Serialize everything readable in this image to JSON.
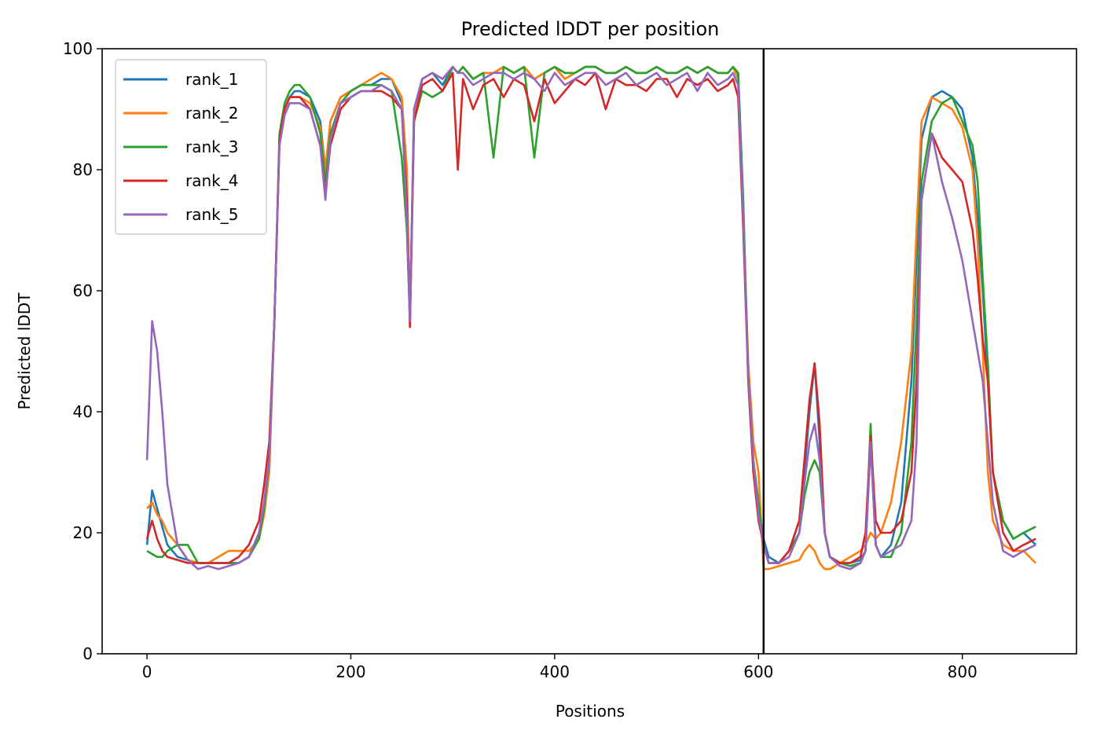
{
  "chart_data": {
    "type": "line",
    "title": "Predicted lDDT per position",
    "xlabel": "Positions",
    "ylabel": "Predicted lDDT",
    "xlim": [
      -44,
      912
    ],
    "ylim": [
      0,
      100
    ],
    "xticks": [
      0,
      200,
      400,
      600,
      800
    ],
    "yticks": [
      0,
      20,
      40,
      60,
      80,
      100
    ],
    "grid": false,
    "legend_position": "top-left",
    "vline": {
      "x": 605,
      "color": "#000000"
    },
    "x": [
      0,
      5,
      10,
      15,
      20,
      30,
      40,
      50,
      60,
      70,
      80,
      90,
      100,
      110,
      115,
      120,
      125,
      130,
      135,
      140,
      145,
      150,
      160,
      170,
      175,
      180,
      190,
      200,
      210,
      220,
      230,
      240,
      250,
      255,
      258,
      262,
      270,
      280,
      290,
      300,
      305,
      310,
      320,
      330,
      340,
      350,
      360,
      370,
      380,
      390,
      400,
      410,
      420,
      430,
      440,
      450,
      460,
      470,
      480,
      490,
      500,
      510,
      520,
      530,
      540,
      550,
      560,
      570,
      575,
      580,
      585,
      590,
      595,
      600,
      605,
      610,
      620,
      630,
      640,
      645,
      650,
      655,
      660,
      665,
      670,
      680,
      690,
      700,
      705,
      710,
      715,
      720,
      730,
      740,
      750,
      755,
      760,
      770,
      780,
      790,
      800,
      810,
      815,
      820,
      825,
      830,
      840,
      850,
      860,
      872
    ],
    "series": [
      {
        "name": "rank_1",
        "color": "#1f77b4",
        "values": [
          18,
          27,
          24,
          21,
          18,
          16,
          15.5,
          15,
          15,
          15,
          15,
          15,
          16,
          20,
          25,
          32,
          55,
          85,
          90,
          92,
          93,
          93,
          92,
          88,
          80,
          88,
          92,
          93,
          94,
          94,
          95,
          95,
          91,
          75,
          55,
          90,
          95,
          96,
          94,
          97,
          96,
          97,
          95,
          96,
          96,
          97,
          96,
          97,
          95,
          96,
          97,
          96,
          96,
          97,
          97,
          96,
          96,
          97,
          96,
          96,
          97,
          96,
          96,
          97,
          96,
          97,
          96,
          96,
          97,
          96,
          75,
          45,
          30,
          24,
          19,
          16,
          15,
          17,
          22,
          30,
          40,
          48,
          35,
          20,
          16,
          15,
          15,
          15.5,
          17,
          35,
          18,
          16,
          18,
          25,
          45,
          65,
          85,
          92,
          93,
          92,
          90,
          82,
          72,
          60,
          45,
          30,
          22,
          19,
          20,
          18
        ]
      },
      {
        "name": "rank_2",
        "color": "#ff7f0e",
        "values": [
          24,
          25,
          23,
          22,
          20,
          18,
          15.5,
          15,
          15,
          16,
          17,
          17,
          17,
          19,
          23,
          30,
          55,
          85,
          90,
          92,
          92,
          92,
          91,
          87,
          80,
          88,
          92,
          93,
          94,
          95,
          96,
          95,
          92,
          80,
          54,
          88,
          95,
          96,
          95,
          97,
          96,
          97,
          95,
          96,
          96,
          97,
          96,
          97,
          95,
          96,
          97,
          95,
          96,
          97,
          97,
          96,
          96,
          97,
          96,
          96,
          97,
          96,
          96,
          97,
          96,
          97,
          96,
          96,
          97,
          95,
          72,
          48,
          35,
          30,
          14,
          14,
          14.5,
          15,
          15.5,
          17,
          18,
          17,
          15,
          14,
          14,
          15,
          16,
          17,
          18,
          20,
          19,
          20,
          25,
          35,
          50,
          70,
          88,
          92,
          91,
          90,
          87,
          80,
          68,
          50,
          30,
          22,
          18,
          17,
          17,
          15
        ]
      },
      {
        "name": "rank_3",
        "color": "#2ca02c",
        "values": [
          17,
          16.5,
          16,
          16,
          17,
          18,
          18,
          15,
          15,
          15,
          15,
          15,
          16,
          19,
          24,
          32,
          55,
          86,
          91,
          93,
          94,
          94,
          92,
          86,
          78,
          86,
          91,
          93,
          94,
          94,
          94,
          93,
          82,
          70,
          55,
          88,
          93,
          92,
          93,
          97,
          96,
          97,
          95,
          96,
          82,
          97,
          96,
          97,
          82,
          96,
          97,
          96,
          96,
          97,
          97,
          96,
          96,
          97,
          96,
          96,
          97,
          96,
          96,
          97,
          96,
          97,
          96,
          96,
          97,
          96,
          74,
          46,
          32,
          25,
          18,
          15,
          15,
          17,
          20,
          26,
          30,
          32,
          30,
          20,
          16,
          15,
          14.5,
          15,
          17,
          38,
          18,
          16,
          16,
          20,
          35,
          55,
          78,
          88,
          91,
          92,
          88,
          84,
          78,
          62,
          48,
          30,
          22,
          19,
          20,
          21
        ]
      },
      {
        "name": "rank_4",
        "color": "#d62728",
        "values": [
          19,
          22,
          19,
          17,
          16,
          15.5,
          15,
          15,
          15,
          15,
          15,
          16,
          18,
          22,
          28,
          35,
          55,
          85,
          90,
          92,
          92,
          92,
          90,
          84,
          76,
          84,
          90,
          92,
          93,
          93,
          93,
          92,
          90,
          75,
          54,
          88,
          94,
          95,
          93,
          96,
          80,
          95,
          90,
          94,
          95,
          92,
          95,
          94,
          88,
          95,
          91,
          93,
          95,
          94,
          96,
          90,
          95,
          94,
          94,
          93,
          95,
          95,
          92,
          95,
          94,
          95,
          93,
          94,
          95,
          92,
          70,
          45,
          30,
          22,
          18,
          15,
          15,
          17,
          22,
          32,
          42,
          48,
          38,
          20,
          16,
          15,
          15,
          16,
          20,
          36,
          22,
          20,
          20,
          22,
          30,
          45,
          75,
          86,
          82,
          80,
          78,
          70,
          62,
          52,
          45,
          30,
          20,
          17,
          18,
          19
        ]
      },
      {
        "name": "rank_5",
        "color": "#9467bd",
        "values": [
          32,
          55,
          50,
          40,
          28,
          18,
          15.5,
          14,
          14.5,
          14,
          14.5,
          15,
          16,
          20,
          25,
          32,
          55,
          84,
          89,
          91,
          91,
          91,
          90,
          84,
          75,
          85,
          91,
          92,
          93,
          93,
          94,
          93,
          90,
          72,
          55,
          90,
          95,
          96,
          95,
          97,
          96,
          96,
          94,
          95,
          96,
          96,
          95,
          96,
          95,
          93,
          96,
          94,
          95,
          96,
          96,
          94,
          95,
          96,
          94,
          95,
          96,
          94,
          95,
          96,
          93,
          96,
          94,
          95,
          96,
          94,
          72,
          46,
          32,
          23,
          18,
          15,
          15,
          16,
          20,
          28,
          35,
          38,
          32,
          20,
          16,
          14.5,
          14,
          15,
          17,
          35,
          18,
          16,
          17,
          18,
          22,
          35,
          75,
          86,
          78,
          72,
          65,
          55,
          50,
          45,
          35,
          25,
          17,
          16,
          17,
          18
        ]
      }
    ]
  }
}
